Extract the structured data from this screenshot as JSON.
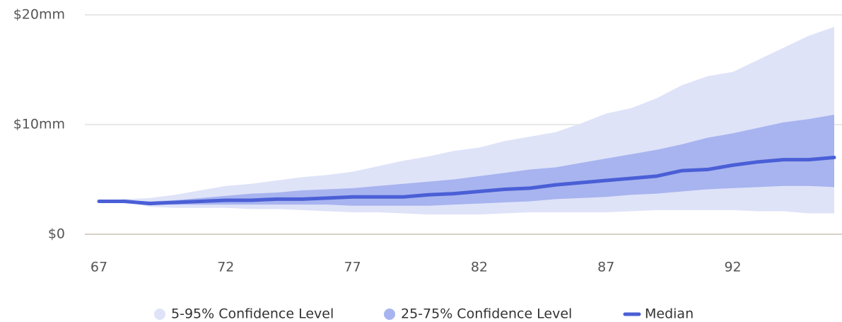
{
  "chart_data": {
    "type": "band-line",
    "x": [
      67,
      68,
      69,
      70,
      71,
      72,
      73,
      74,
      75,
      76,
      77,
      78,
      79,
      80,
      81,
      82,
      83,
      84,
      85,
      86,
      87,
      88,
      89,
      90,
      91,
      92,
      93,
      94,
      95,
      96
    ],
    "xlim": [
      67,
      96
    ],
    "xticks": [
      67,
      72,
      77,
      82,
      87,
      92
    ],
    "ylim": [
      0,
      20
    ],
    "yticks": [
      {
        "value": 0,
        "label": "$0"
      },
      {
        "value": 10,
        "label": "$10mm"
      },
      {
        "value": 20,
        "label": "$20mm"
      }
    ],
    "grid": true,
    "legend": "bottom",
    "series": [
      {
        "name": "5-95% Confidence Level",
        "color": "#dfe3f8",
        "kind": "band",
        "values": [
          3.0,
          3.2,
          3.3,
          3.6,
          4.0,
          4.4,
          4.6,
          4.9,
          5.2,
          5.4,
          5.7,
          6.2,
          6.7,
          7.1,
          7.6,
          7.9,
          8.5,
          8.9,
          9.3,
          10.1,
          11.0,
          11.5,
          12.4,
          13.6,
          14.4,
          14.8,
          15.9,
          17.0,
          18.1,
          18.9
        ],
        "lower": [
          3.0,
          3.0,
          2.5,
          2.4,
          2.4,
          2.4,
          2.3,
          2.3,
          2.2,
          2.1,
          2.0,
          2.0,
          1.9,
          1.8,
          1.8,
          1.8,
          1.9,
          2.0,
          2.0,
          2.0,
          2.0,
          2.1,
          2.2,
          2.2,
          2.2,
          2.2,
          2.1,
          2.1,
          1.9,
          1.9
        ]
      },
      {
        "name": "25-75% Confidence Level",
        "color": "#a8b4ef",
        "kind": "band",
        "values": [
          3.0,
          3.1,
          3.0,
          3.1,
          3.3,
          3.5,
          3.7,
          3.8,
          4.0,
          4.1,
          4.2,
          4.4,
          4.6,
          4.8,
          5.0,
          5.3,
          5.6,
          5.9,
          6.1,
          6.5,
          6.9,
          7.3,
          7.7,
          8.2,
          8.8,
          9.2,
          9.7,
          10.2,
          10.5,
          10.9
        ],
        "lower": [
          3.0,
          3.0,
          2.7,
          2.7,
          2.7,
          2.7,
          2.7,
          2.7,
          2.7,
          2.7,
          2.6,
          2.6,
          2.6,
          2.6,
          2.7,
          2.8,
          2.9,
          3.0,
          3.2,
          3.3,
          3.4,
          3.6,
          3.7,
          3.9,
          4.1,
          4.2,
          4.3,
          4.4,
          4.4,
          4.3
        ]
      },
      {
        "name": "Median",
        "color": "#4a5fd6",
        "kind": "line",
        "values": [
          3.0,
          3.0,
          2.8,
          2.9,
          3.0,
          3.1,
          3.1,
          3.2,
          3.2,
          3.3,
          3.4,
          3.4,
          3.4,
          3.6,
          3.7,
          3.9,
          4.1,
          4.2,
          4.5,
          4.7,
          4.9,
          5.1,
          5.3,
          5.8,
          5.9,
          6.3,
          6.6,
          6.8,
          6.8,
          7.0
        ]
      }
    ]
  }
}
